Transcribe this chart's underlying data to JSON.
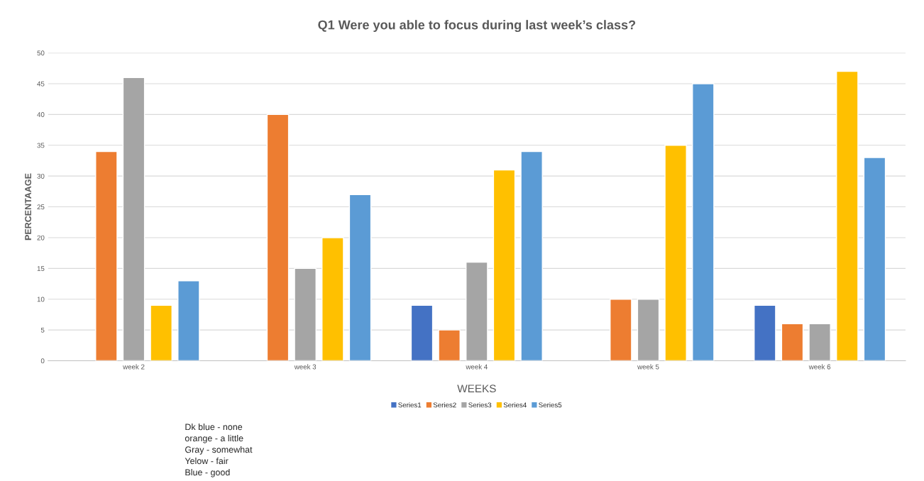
{
  "chart_data": {
    "type": "bar",
    "title": "Q1 Were you able to focus during last week’s class?",
    "xlabel": "WEEKS",
    "ylabel": "PERCENTAAGE",
    "categories": [
      "week 2",
      "week 3",
      "week 4",
      "week 5",
      "week 6"
    ],
    "series": [
      {
        "name": "Series1",
        "color": "#4472c4",
        "values": [
          null,
          null,
          9,
          null,
          9
        ]
      },
      {
        "name": "Series2",
        "color": "#ed7d31",
        "values": [
          34,
          40,
          5,
          10,
          6
        ]
      },
      {
        "name": "Series3",
        "color": "#a5a5a5",
        "values": [
          46,
          15,
          16,
          10,
          6
        ]
      },
      {
        "name": "Series4",
        "color": "#ffc000",
        "values": [
          9,
          20,
          31,
          35,
          47
        ]
      },
      {
        "name": "Series5",
        "color": "#5b9bd5",
        "values": [
          13,
          27,
          34,
          45,
          33
        ]
      }
    ],
    "ylim": [
      0,
      50
    ],
    "yticks": [
      0,
      5,
      10,
      15,
      20,
      25,
      30,
      35,
      40,
      45,
      50
    ],
    "grid": "y",
    "legend": "bottom",
    "annotations": [
      "Dk blue - none",
      "orange - a little",
      "Gray - somewhat",
      "Yelow - fair",
      "Blue - good"
    ]
  }
}
